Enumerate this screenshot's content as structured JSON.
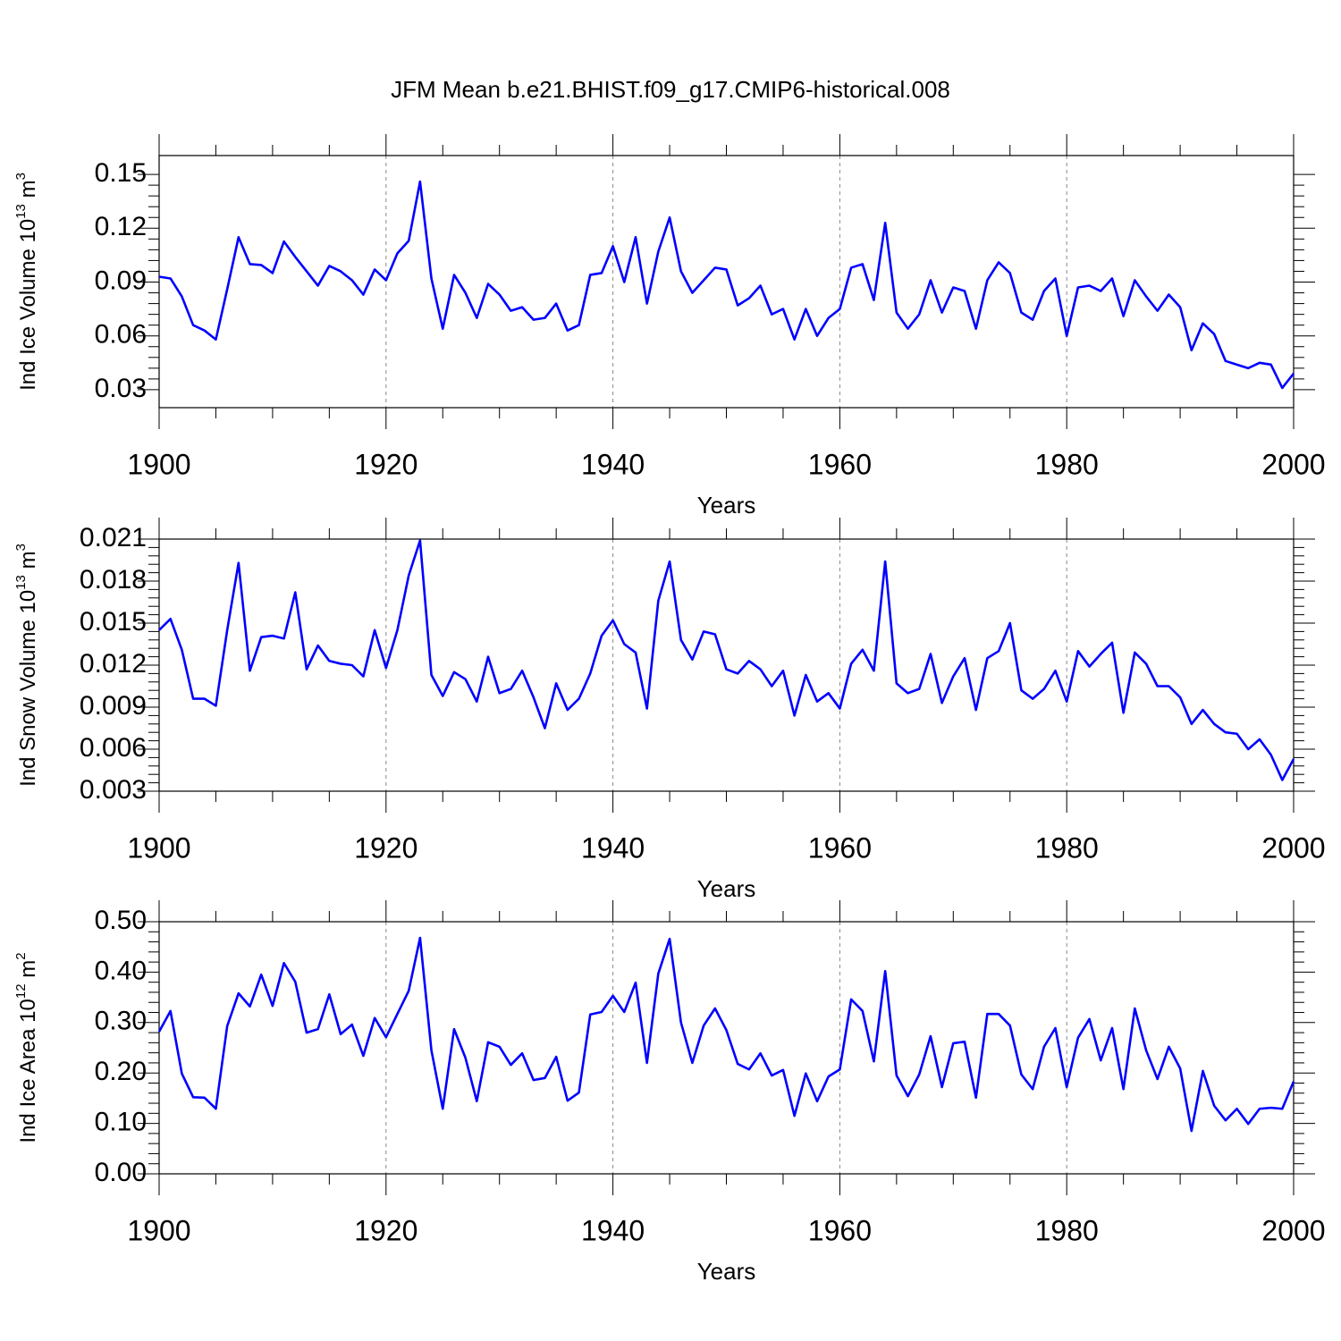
{
  "title": "JFM Mean b.e21.BHIST.f09_g17.CMIP6-historical.008",
  "chart_data": [
    {
      "type": "line",
      "xlabel": "Years",
      "ylabel": {
        "text": "Ind Ice Volume 10",
        "sup": "13",
        "unit": " m",
        "unit_sup": "3"
      },
      "xlim": [
        1900,
        2000
      ],
      "xticks": [
        1900,
        1920,
        1940,
        1960,
        1980,
        2000
      ],
      "ylim": [
        0.02,
        0.1605
      ],
      "yticks": [
        0.03,
        0.06,
        0.09,
        0.12,
        0.15
      ],
      "grid": "x",
      "x": [
        1900,
        1901,
        1902,
        1903,
        1904,
        1905,
        1906,
        1907,
        1908,
        1909,
        1910,
        1911,
        1912,
        1913,
        1914,
        1915,
        1916,
        1917,
        1918,
        1919,
        1920,
        1921,
        1922,
        1923,
        1924,
        1925,
        1926,
        1927,
        1928,
        1929,
        1930,
        1931,
        1932,
        1933,
        1934,
        1935,
        1936,
        1937,
        1938,
        1939,
        1940,
        1941,
        1942,
        1943,
        1944,
        1945,
        1946,
        1947,
        1948,
        1949,
        1950,
        1951,
        1952,
        1953,
        1954,
        1955,
        1956,
        1957,
        1958,
        1959,
        1960,
        1961,
        1962,
        1963,
        1964,
        1965,
        1966,
        1967,
        1968,
        1969,
        1970,
        1971,
        1972,
        1973,
        1974,
        1975,
        1976,
        1977,
        1978,
        1979,
        1980,
        1981,
        1982,
        1983,
        1984,
        1985,
        1986,
        1987,
        1988,
        1989,
        1990,
        1991,
        1992,
        1993,
        1994,
        1995,
        1996,
        1997,
        1998,
        1999,
        2000
      ],
      "series": [
        {
          "color": "#0000ff",
          "values": [
            0.093,
            0.092,
            0.082,
            0.066,
            0.063,
            0.058,
            0.086,
            0.115,
            0.1,
            0.0995,
            0.095,
            0.1126,
            0.104,
            0.096,
            0.088,
            0.099,
            0.096,
            0.091,
            0.083,
            0.097,
            0.091,
            0.106,
            0.113,
            0.146,
            0.092,
            0.064,
            0.094,
            0.084,
            0.07,
            0.089,
            0.083,
            0.074,
            0.076,
            0.069,
            0.07,
            0.078,
            0.063,
            0.066,
            0.094,
            0.095,
            0.11,
            0.09,
            0.115,
            0.078,
            0.107,
            0.126,
            0.096,
            0.084,
            0.091,
            0.098,
            0.097,
            0.077,
            0.081,
            0.088,
            0.072,
            0.075,
            0.058,
            0.075,
            0.06,
            0.07,
            0.075,
            0.098,
            0.1,
            0.08,
            0.123,
            0.073,
            0.064,
            0.072,
            0.091,
            0.073,
            0.087,
            0.085,
            0.064,
            0.091,
            0.101,
            0.095,
            0.073,
            0.069,
            0.085,
            0.092,
            0.06,
            0.087,
            0.088,
            0.085,
            0.092,
            0.071,
            0.091,
            0.082,
            0.074,
            0.083,
            0.076,
            0.052,
            0.067,
            0.061,
            0.046,
            0.044,
            0.042,
            0.045,
            0.044,
            0.031,
            0.039
          ]
        }
      ]
    },
    {
      "type": "line",
      "xlabel": "Years",
      "ylabel": {
        "text": "Ind Snow Volume 10",
        "sup": "13",
        "unit": " m",
        "unit_sup": "3"
      },
      "xlim": [
        1900,
        2000
      ],
      "xticks": [
        1900,
        1920,
        1940,
        1960,
        1980,
        2000
      ],
      "ylim": [
        0.003,
        0.021
      ],
      "yticks": [
        0.003,
        0.006,
        0.009,
        0.012,
        0.015,
        0.018,
        0.021
      ],
      "grid": "x",
      "x": [
        1900,
        1901,
        1902,
        1903,
        1904,
        1905,
        1906,
        1907,
        1908,
        1909,
        1910,
        1911,
        1912,
        1913,
        1914,
        1915,
        1916,
        1917,
        1918,
        1919,
        1920,
        1921,
        1922,
        1923,
        1924,
        1925,
        1926,
        1927,
        1928,
        1929,
        1930,
        1931,
        1932,
        1933,
        1934,
        1935,
        1936,
        1937,
        1938,
        1939,
        1940,
        1941,
        1942,
        1943,
        1944,
        1945,
        1946,
        1947,
        1948,
        1949,
        1950,
        1951,
        1952,
        1953,
        1954,
        1955,
        1956,
        1957,
        1958,
        1959,
        1960,
        1961,
        1962,
        1963,
        1964,
        1965,
        1966,
        1967,
        1968,
        1969,
        1970,
        1971,
        1972,
        1973,
        1974,
        1975,
        1976,
        1977,
        1978,
        1979,
        1980,
        1981,
        1982,
        1983,
        1984,
        1985,
        1986,
        1987,
        1988,
        1989,
        1990,
        1991,
        1992,
        1993,
        1994,
        1995,
        1996,
        1997,
        1998,
        1999,
        2000
      ],
      "series": [
        {
          "color": "#0000ff",
          "values": [
            0.0145,
            0.0153,
            0.0131,
            0.0096,
            0.0096,
            0.0091,
            0.0145,
            0.0193,
            0.0116,
            0.014,
            0.0141,
            0.0139,
            0.0172,
            0.0117,
            0.0134,
            0.0123,
            0.0121,
            0.012,
            0.0112,
            0.0145,
            0.0118,
            0.0145,
            0.0184,
            0.0209,
            0.0113,
            0.0098,
            0.0115,
            0.011,
            0.0094,
            0.0126,
            0.01,
            0.0103,
            0.0116,
            0.0097,
            0.0075,
            0.0107,
            0.0088,
            0.0096,
            0.0114,
            0.0141,
            0.0152,
            0.0135,
            0.0129,
            0.0089,
            0.0166,
            0.0194,
            0.0138,
            0.0124,
            0.0144,
            0.0142,
            0.0117,
            0.0114,
            0.0123,
            0.0117,
            0.0105,
            0.0116,
            0.0084,
            0.0113,
            0.0094,
            0.01,
            0.0089,
            0.0121,
            0.0131,
            0.0116,
            0.0194,
            0.0107,
            0.01,
            0.0103,
            0.0128,
            0.0093,
            0.0112,
            0.0125,
            0.0088,
            0.0125,
            0.013,
            0.015,
            0.0102,
            0.0096,
            0.0103,
            0.0116,
            0.0094,
            0.013,
            0.0119,
            0.0128,
            0.0136,
            0.0086,
            0.0129,
            0.0121,
            0.0105,
            0.0105,
            0.0097,
            0.0078,
            0.0088,
            0.0078,
            0.0072,
            0.0071,
            0.006,
            0.0067,
            0.0056,
            0.0038,
            0.0053
          ]
        }
      ]
    },
    {
      "type": "line",
      "xlabel": "Years",
      "ylabel": {
        "text": "Ind Ice Area 10",
        "sup": "12",
        "unit": " m",
        "unit_sup": "2"
      },
      "xlim": [
        1900,
        2000
      ],
      "xticks": [
        1900,
        1920,
        1940,
        1960,
        1980,
        2000
      ],
      "ylim": [
        0,
        0.5
      ],
      "yticks": [
        {
          "value": 0,
          "label": "0.00"
        },
        {
          "value": 0.1,
          "label": "0.10"
        },
        {
          "value": 0.2,
          "label": "0.20"
        },
        {
          "value": 0.3,
          "label": "0.30"
        },
        {
          "value": 0.4,
          "label": "0.40"
        },
        {
          "value": 0.5,
          "label": "0.50"
        }
      ],
      "grid": "x",
      "x": [
        1900,
        1901,
        1902,
        1903,
        1904,
        1905,
        1906,
        1907,
        1908,
        1909,
        1910,
        1911,
        1912,
        1913,
        1914,
        1915,
        1916,
        1917,
        1918,
        1919,
        1920,
        1921,
        1922,
        1923,
        1924,
        1925,
        1926,
        1927,
        1928,
        1929,
        1930,
        1931,
        1932,
        1933,
        1934,
        1935,
        1936,
        1937,
        1938,
        1939,
        1940,
        1941,
        1942,
        1943,
        1944,
        1945,
        1946,
        1947,
        1948,
        1949,
        1950,
        1951,
        1952,
        1953,
        1954,
        1955,
        1956,
        1957,
        1958,
        1959,
        1960,
        1961,
        1962,
        1963,
        1964,
        1965,
        1966,
        1967,
        1968,
        1969,
        1970,
        1971,
        1972,
        1973,
        1974,
        1975,
        1976,
        1977,
        1978,
        1979,
        1980,
        1981,
        1982,
        1983,
        1984,
        1985,
        1986,
        1987,
        1988,
        1989,
        1990,
        1991,
        1992,
        1993,
        1994,
        1995,
        1996,
        1997,
        1998,
        1999,
        2000
      ],
      "series": [
        {
          "color": "#0000ff",
          "values": [
            0.282,
            0.323,
            0.199,
            0.152,
            0.151,
            0.129,
            0.293,
            0.358,
            0.332,
            0.395,
            0.333,
            0.418,
            0.381,
            0.28,
            0.287,
            0.356,
            0.277,
            0.296,
            0.234,
            0.309,
            0.271,
            0.317,
            0.363,
            0.468,
            0.245,
            0.129,
            0.287,
            0.23,
            0.144,
            0.261,
            0.252,
            0.216,
            0.239,
            0.186,
            0.19,
            0.232,
            0.145,
            0.161,
            0.316,
            0.321,
            0.353,
            0.321,
            0.379,
            0.22,
            0.397,
            0.466,
            0.3,
            0.22,
            0.294,
            0.328,
            0.285,
            0.218,
            0.207,
            0.239,
            0.195,
            0.206,
            0.115,
            0.199,
            0.144,
            0.193,
            0.207,
            0.346,
            0.323,
            0.223,
            0.402,
            0.195,
            0.154,
            0.197,
            0.273,
            0.172,
            0.259,
            0.262,
            0.151,
            0.317,
            0.317,
            0.294,
            0.197,
            0.168,
            0.252,
            0.289,
            0.172,
            0.27,
            0.307,
            0.225,
            0.289,
            0.168,
            0.328,
            0.245,
            0.188,
            0.252,
            0.209,
            0.085,
            0.204,
            0.135,
            0.106,
            0.129,
            0.099,
            0.129,
            0.131,
            0.129,
            0.183
          ]
        }
      ]
    }
  ]
}
